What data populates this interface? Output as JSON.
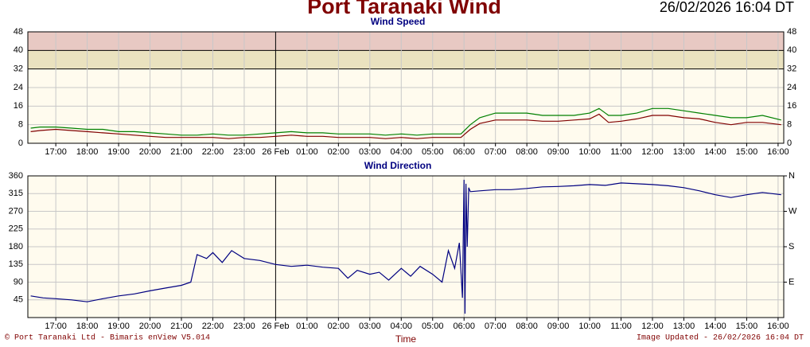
{
  "title": "Port Taranaki Wind",
  "timestamp": "26/02/2026 16:04 DT",
  "footer": {
    "copyright": "© Port Taranaki Ltd - Bimaris enView V5.014",
    "updated": "Image Updated - 26/02/2026 16:04 DT"
  },
  "chart_data": [
    {
      "type": "line",
      "title": "Wind Speed",
      "x": [
        16.2,
        16.5,
        17,
        17.5,
        18,
        18.5,
        19,
        19.5,
        20,
        20.5,
        21,
        21.5,
        22,
        22.5,
        23,
        23.5,
        24,
        24.5,
        25,
        25.5,
        26,
        26.5,
        27,
        27.5,
        28,
        28.5,
        29,
        29.5,
        29.9,
        30.2,
        30.5,
        31,
        31.5,
        32,
        32.5,
        33,
        33.5,
        34,
        34.3,
        34.6,
        35,
        35.5,
        36,
        36.5,
        37,
        37.5,
        38,
        38.5,
        39,
        39.5,
        40.1
      ],
      "series": [
        {
          "color": "#008000",
          "values": [
            6.5,
            7,
            7,
            6.5,
            6,
            6,
            5,
            5,
            4.5,
            4,
            3.5,
            3.5,
            4,
            3.5,
            3.5,
            4,
            4.5,
            5,
            4.5,
            4.5,
            4,
            4,
            4,
            3.5,
            4,
            3.5,
            4,
            4,
            4,
            8,
            11,
            13,
            13,
            13,
            12,
            12,
            12,
            13,
            15,
            12,
            12,
            13,
            15,
            15,
            14,
            13,
            12,
            11,
            11,
            12,
            10
          ]
        },
        {
          "color": "#800000",
          "values": [
            5,
            5.5,
            6,
            5.5,
            5,
            4.5,
            4,
            3.5,
            3,
            2.5,
            2.5,
            2.5,
            2.5,
            2,
            2.5,
            2.5,
            3,
            3.5,
            3,
            3,
            2.5,
            2.5,
            2.5,
            2,
            2.5,
            2,
            2.5,
            2.5,
            2.5,
            6,
            8.5,
            10,
            10,
            10,
            9.5,
            9.5,
            10,
            10.5,
            12.5,
            9,
            9.5,
            10.5,
            12,
            12,
            11,
            10.5,
            9,
            8,
            9,
            9,
            8
          ]
        }
      ],
      "xlim": [
        16.11,
        40.18
      ],
      "xticks": [
        {
          "value": 17,
          "label": "17:00"
        },
        {
          "value": 18,
          "label": "18:00"
        },
        {
          "value": 19,
          "label": "19:00"
        },
        {
          "value": 20,
          "label": "20:00"
        },
        {
          "value": 21,
          "label": "21:00"
        },
        {
          "value": 22,
          "label": "22:00"
        },
        {
          "value": 23,
          "label": "23:00"
        },
        {
          "value": 24,
          "label": "26 Feb"
        },
        {
          "value": 25,
          "label": "01:00"
        },
        {
          "value": 26,
          "label": "02:00"
        },
        {
          "value": 27,
          "label": "03:00"
        },
        {
          "value": 28,
          "label": "04:00"
        },
        {
          "value": 29,
          "label": "05:00"
        },
        {
          "value": 30,
          "label": "06:00"
        },
        {
          "value": 31,
          "label": "07:00"
        },
        {
          "value": 32,
          "label": "08:00"
        },
        {
          "value": 33,
          "label": "09:00"
        },
        {
          "value": 34,
          "label": "10:00"
        },
        {
          "value": 35,
          "label": "11:00"
        },
        {
          "value": 36,
          "label": "12:00"
        },
        {
          "value": 37,
          "label": "13:00"
        },
        {
          "value": 38,
          "label": "14:00"
        },
        {
          "value": 39,
          "label": "15:00"
        },
        {
          "value": 40,
          "label": "16:00"
        }
      ],
      "ylim": [
        0,
        48
      ],
      "yticks": [
        0,
        8,
        16,
        24,
        32,
        40,
        48
      ],
      "bands": [
        {
          "from": 0,
          "to": 32,
          "color": "#fffbee"
        },
        {
          "from": 32,
          "to": 40,
          "color": "#eae2bf"
        },
        {
          "from": 40,
          "to": 48,
          "color": "#e8c9c3"
        }
      ],
      "grid": true
    },
    {
      "type": "line",
      "title": "Wind Direction",
      "xlabel": "Time",
      "x": [
        16.2,
        16.6,
        17,
        17.5,
        18,
        18.5,
        19,
        19.5,
        20,
        20.5,
        21,
        21.3,
        21.5,
        21.8,
        22,
        22.3,
        22.6,
        23,
        23.5,
        24,
        24.5,
        25,
        25.5,
        26,
        26.3,
        26.6,
        27,
        27.3,
        27.6,
        28,
        28.3,
        28.6,
        29,
        29.3,
        29.5,
        29.7,
        29.85,
        29.95,
        30,
        30.03,
        30.06,
        30.1,
        30.15,
        30.2,
        30.5,
        31,
        31.5,
        32,
        32.5,
        33,
        33.5,
        34,
        34.5,
        35,
        35.5,
        36,
        36.5,
        37,
        37.5,
        38,
        38.5,
        39,
        39.5,
        40.1
      ],
      "series": [
        {
          "color": "#000080",
          "values": [
            55,
            50,
            48,
            45,
            40,
            48,
            55,
            60,
            68,
            75,
            82,
            90,
            160,
            150,
            165,
            140,
            170,
            150,
            145,
            135,
            130,
            133,
            128,
            125,
            100,
            120,
            110,
            115,
            95,
            125,
            105,
            130,
            110,
            90,
            170,
            125,
            190,
            50,
            350,
            10,
            340,
            180,
            330,
            320,
            322,
            325,
            325,
            328,
            332,
            333,
            335,
            338,
            336,
            342,
            340,
            338,
            335,
            330,
            322,
            312,
            305,
            312,
            318,
            312
          ]
        }
      ],
      "xlim": [
        16.11,
        40.18
      ],
      "xticks": [
        {
          "value": 17,
          "label": "17:00"
        },
        {
          "value": 18,
          "label": "18:00"
        },
        {
          "value": 19,
          "label": "19:00"
        },
        {
          "value": 20,
          "label": "20:00"
        },
        {
          "value": 21,
          "label": "21:00"
        },
        {
          "value": 22,
          "label": "22:00"
        },
        {
          "value": 23,
          "label": "23:00"
        },
        {
          "value": 24,
          "label": "26 Feb"
        },
        {
          "value": 25,
          "label": "01:00"
        },
        {
          "value": 26,
          "label": "02:00"
        },
        {
          "value": 27,
          "label": "03:00"
        },
        {
          "value": 28,
          "label": "04:00"
        },
        {
          "value": 29,
          "label": "05:00"
        },
        {
          "value": 30,
          "label": "06:00"
        },
        {
          "value": 31,
          "label": "07:00"
        },
        {
          "value": 32,
          "label": "08:00"
        },
        {
          "value": 33,
          "label": "09:00"
        },
        {
          "value": 34,
          "label": "10:00"
        },
        {
          "value": 35,
          "label": "11:00"
        },
        {
          "value": 36,
          "label": "12:00"
        },
        {
          "value": 37,
          "label": "13:00"
        },
        {
          "value": 38,
          "label": "14:00"
        },
        {
          "value": 39,
          "label": "15:00"
        },
        {
          "value": 40,
          "label": "16:00"
        }
      ],
      "ylim": [
        0,
        360
      ],
      "yticks": [
        45,
        90,
        135,
        180,
        225,
        270,
        315,
        360
      ],
      "y2lim": [
        0,
        360
      ],
      "y2ticks": [
        {
          "value": 90,
          "label": "E"
        },
        {
          "value": 180,
          "label": "S"
        },
        {
          "value": 270,
          "label": "W"
        },
        {
          "value": 360,
          "label": "N"
        }
      ],
      "bands": [
        {
          "from": 0,
          "to": 360,
          "color": "#fffbee"
        }
      ],
      "grid": true
    }
  ]
}
